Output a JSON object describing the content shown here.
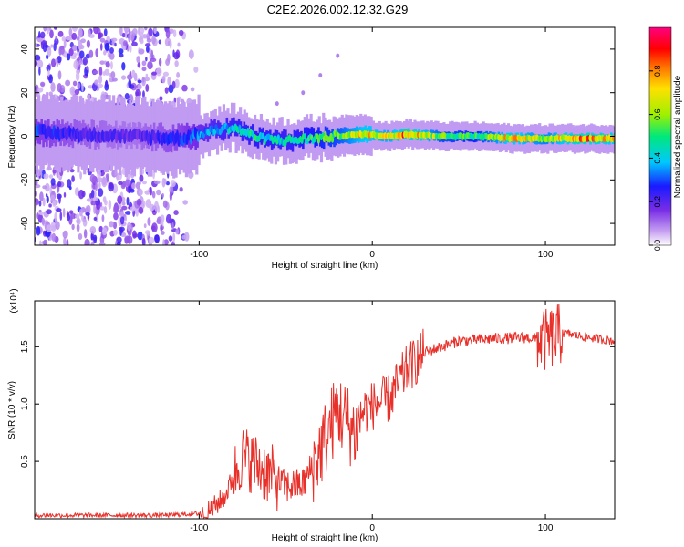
{
  "title": "C2E2.2026.002.12.32.G29",
  "chart_data": [
    {
      "type": "heatmap",
      "name": "spectrogram",
      "xlabel": "Height of straight line (km)",
      "ylabel": "Frequency (Hz)",
      "xlim": [
        -195,
        140
      ],
      "ylim": [
        -50,
        50
      ],
      "xticks": [
        -100,
        0,
        100
      ],
      "xtick_labels": [
        "-100",
        "0",
        "100"
      ],
      "yticks": [
        -40,
        -20,
        0,
        20,
        40
      ],
      "ytick_labels": [
        "-40",
        "-20",
        "0",
        "20",
        "40"
      ],
      "colorbar": {
        "label": "Normalized spectral amplitude",
        "range": [
          0,
          1
        ],
        "ticks": [
          0,
          0.2,
          0.4,
          0.6,
          0.8
        ],
        "tick_labels": [
          "0.0",
          "0.2",
          "0.4",
          "0.6",
          "0.8"
        ],
        "colors": [
          "#ffffff",
          "#c9a6f2",
          "#7a2ee6",
          "#1a1aff",
          "#00c8ff",
          "#00e87a",
          "#a0f000",
          "#ffe000",
          "#ff7000",
          "#ff0000",
          "#ff0080"
        ]
      },
      "ridge": [
        {
          "x": -195,
          "f": 2,
          "amp": 0.28
        },
        {
          "x": -170,
          "f": 1,
          "amp": 0.22
        },
        {
          "x": -140,
          "f": 0,
          "amp": 0.18
        },
        {
          "x": -110,
          "f": -1,
          "amp": 0.26
        },
        {
          "x": -90,
          "f": 3,
          "amp": 0.38
        },
        {
          "x": -80,
          "f": 4,
          "amp": 0.42
        },
        {
          "x": -65,
          "f": -1,
          "amp": 0.45
        },
        {
          "x": -50,
          "f": -2,
          "amp": 0.42
        },
        {
          "x": -35,
          "f": -1,
          "amp": 0.48
        },
        {
          "x": -20,
          "f": 0,
          "amp": 0.55
        },
        {
          "x": -5,
          "f": 1,
          "amp": 0.7
        },
        {
          "x": 10,
          "f": 0,
          "amp": 0.65
        },
        {
          "x": 20,
          "f": 1,
          "amp": 0.8
        },
        {
          "x": 40,
          "f": 0,
          "amp": 0.55
        },
        {
          "x": 60,
          "f": 0,
          "amp": 0.5
        },
        {
          "x": 80,
          "f": -1,
          "amp": 0.72
        },
        {
          "x": 100,
          "f": -1,
          "amp": 0.6
        },
        {
          "x": 120,
          "f": -1,
          "amp": 0.8
        },
        {
          "x": 140,
          "f": -1,
          "amp": 0.7
        }
      ],
      "scatter_region": {
        "x_range": [
          -195,
          -100
        ],
        "f_range": [
          -50,
          50
        ]
      },
      "faint_trace": [
        {
          "x": -55,
          "f": 15
        },
        {
          "x": -40,
          "f": 20
        },
        {
          "x": -30,
          "f": 28
        },
        {
          "x": -20,
          "f": 37
        }
      ]
    },
    {
      "type": "line",
      "name": "snr",
      "xlabel": "Height of straight line (km)",
      "ylabel": "SNR (10 * v/v)",
      "scale_label": "(x10⁴)",
      "xlim": [
        -195,
        140
      ],
      "ylim": [
        0,
        1.9
      ],
      "xticks": [
        -100,
        0,
        100
      ],
      "xtick_labels": [
        "-100",
        "0",
        "100"
      ],
      "yticks": [
        0.5,
        1.0,
        1.5
      ],
      "ytick_labels": [
        "0.5",
        "1.0",
        "1.5"
      ],
      "color": "#e8302a",
      "series": [
        {
          "x": -195,
          "y": 0.03
        },
        {
          "x": -120,
          "y": 0.03
        },
        {
          "x": -95,
          "y": 0.05
        },
        {
          "x": -85,
          "y": 0.2
        },
        {
          "x": -75,
          "y": 0.55
        },
        {
          "x": -65,
          "y": 0.45
        },
        {
          "x": -50,
          "y": 0.28
        },
        {
          "x": -40,
          "y": 0.3
        },
        {
          "x": -30,
          "y": 0.6
        },
        {
          "x": -20,
          "y": 0.95
        },
        {
          "x": -10,
          "y": 0.75
        },
        {
          "x": -5,
          "y": 0.95
        },
        {
          "x": 10,
          "y": 1.05
        },
        {
          "x": 20,
          "y": 1.3
        },
        {
          "x": 30,
          "y": 1.45
        },
        {
          "x": 50,
          "y": 1.55
        },
        {
          "x": 70,
          "y": 1.57
        },
        {
          "x": 90,
          "y": 1.58
        },
        {
          "x": 100,
          "y": 1.55
        },
        {
          "x": 110,
          "y": 1.62
        },
        {
          "x": 125,
          "y": 1.58
        },
        {
          "x": 140,
          "y": 1.55
        }
      ],
      "noise": [
        {
          "x0": -195,
          "x1": -100,
          "amp": 0.02
        },
        {
          "x0": -100,
          "x1": -80,
          "amp": 0.1
        },
        {
          "x0": -80,
          "x1": -55,
          "amp": 0.28
        },
        {
          "x0": -55,
          "x1": -35,
          "amp": 0.15
        },
        {
          "x0": -35,
          "x1": -8,
          "amp": 0.35
        },
        {
          "x0": -8,
          "x1": 30,
          "amp": 0.22
        },
        {
          "x0": 30,
          "x1": 95,
          "amp": 0.05
        },
        {
          "x0": 95,
          "x1": 110,
          "amp": 0.28
        },
        {
          "x0": 110,
          "x1": 140,
          "amp": 0.04
        }
      ]
    }
  ]
}
